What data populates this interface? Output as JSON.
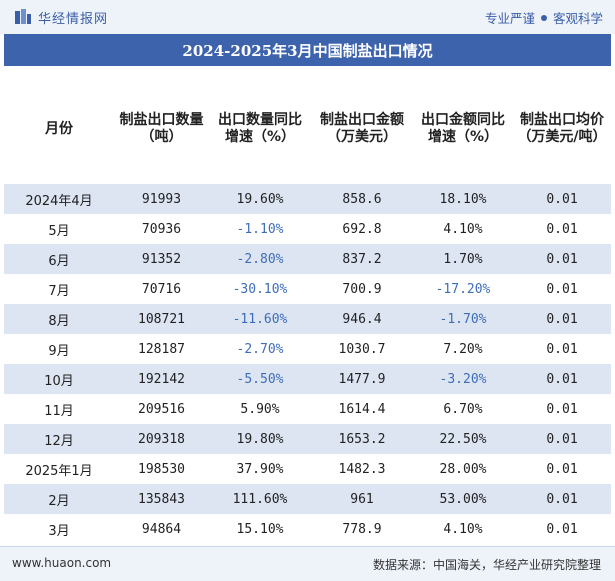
{
  "header": {
    "brand_name": "华经情报网",
    "slogan_left": "专业严谨",
    "slogan_right": "客观科学"
  },
  "title": "2024-2025年3月中国制盐出口情况",
  "table": {
    "headers": [
      "月份",
      "制盐出口数量（吨）",
      "出口数量同比增速（%）",
      "制盐出口金额（万美元）",
      "出口金额同比增速（%）",
      "制盐出口均价（万美元/吨）"
    ],
    "rows": [
      {
        "month": "2024年4月",
        "qty": "91993",
        "qty_yoy": "19.60%",
        "amt": "858.6",
        "amt_yoy": "18.10%",
        "price": "0.01"
      },
      {
        "month": "5月",
        "qty": "70936",
        "qty_yoy": "-1.10%",
        "amt": "692.8",
        "amt_yoy": "4.10%",
        "price": "0.01"
      },
      {
        "month": "6月",
        "qty": "91352",
        "qty_yoy": "-2.80%",
        "amt": "837.2",
        "amt_yoy": "1.70%",
        "price": "0.01"
      },
      {
        "month": "7月",
        "qty": "70716",
        "qty_yoy": "-30.10%",
        "amt": "700.9",
        "amt_yoy": "-17.20%",
        "price": "0.01"
      },
      {
        "month": "8月",
        "qty": "108721",
        "qty_yoy": "-11.60%",
        "amt": "946.4",
        "amt_yoy": "-1.70%",
        "price": "0.01"
      },
      {
        "month": "9月",
        "qty": "128187",
        "qty_yoy": "-2.70%",
        "amt": "1030.7",
        "amt_yoy": "7.20%",
        "price": "0.01"
      },
      {
        "month": "10月",
        "qty": "192142",
        "qty_yoy": "-5.50%",
        "amt": "1477.9",
        "amt_yoy": "-3.20%",
        "price": "0.01"
      },
      {
        "month": "11月",
        "qty": "209516",
        "qty_yoy": "5.90%",
        "amt": "1614.4",
        "amt_yoy": "6.70%",
        "price": "0.01"
      },
      {
        "month": "12月",
        "qty": "209318",
        "qty_yoy": "19.80%",
        "amt": "1653.2",
        "amt_yoy": "22.50%",
        "price": "0.01"
      },
      {
        "month": "2025年1月",
        "qty": "198530",
        "qty_yoy": "37.90%",
        "amt": "1482.3",
        "amt_yoy": "28.00%",
        "price": "0.01"
      },
      {
        "month": "2月",
        "qty": "135843",
        "qty_yoy": "111.60%",
        "amt": "961",
        "amt_yoy": "53.00%",
        "price": "0.01"
      },
      {
        "month": "3月",
        "qty": "94864",
        "qty_yoy": "15.10%",
        "amt": "778.9",
        "amt_yoy": "4.10%",
        "price": "0.01"
      }
    ]
  },
  "footer": {
    "url": "www.huaon.com",
    "source": "数据来源：中国海关，华经产业研究院整理"
  },
  "colors": {
    "accent": "#3e63ad",
    "negative": "#3e6db8",
    "stripe": "#dde5f3"
  }
}
